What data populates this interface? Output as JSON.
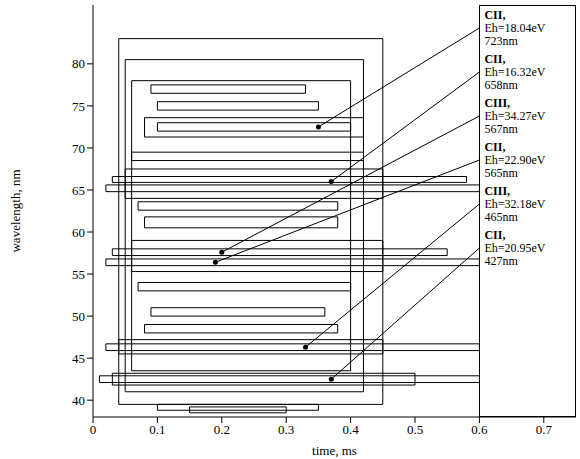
{
  "chart_data": {
    "type": "contour",
    "x_label": "time, ms",
    "y_label": "wavelength, nm",
    "xlim": [
      0,
      0.75
    ],
    "xticks": [
      0,
      0.1,
      0.2,
      0.3,
      0.4,
      0.5,
      0.6,
      0.7
    ],
    "ylim": [
      38,
      87
    ],
    "yticks": [
      40,
      45,
      50,
      55,
      60,
      65,
      70,
      75,
      80
    ],
    "color": "#000000",
    "contours": [
      {
        "t": [
          0.04,
          0.45
        ],
        "wavelength": [
          39.5,
          83
        ]
      },
      {
        "t": [
          0.05,
          0.42
        ],
        "wavelength": [
          41,
          80.5
        ]
      },
      {
        "t": [
          0.06,
          0.4
        ],
        "wavelength": [
          43.5,
          78
        ]
      },
      {
        "t": [
          0.01,
          0.6
        ],
        "wavelength": [
          42.1,
          42.9
        ]
      },
      {
        "t": [
          0.03,
          0.5
        ],
        "wavelength": [
          41.8,
          43.2
        ]
      },
      {
        "t": [
          0.02,
          0.6
        ],
        "wavelength": [
          45.9,
          46.7
        ]
      },
      {
        "t": [
          0.04,
          0.45
        ],
        "wavelength": [
          45.5,
          47.2
        ]
      },
      {
        "t": [
          0.08,
          0.38
        ],
        "wavelength": [
          48,
          49
        ]
      },
      {
        "t": [
          0.09,
          0.36
        ],
        "wavelength": [
          50,
          51
        ]
      },
      {
        "t": [
          0.07,
          0.4
        ],
        "wavelength": [
          53,
          54
        ]
      },
      {
        "t": [
          0.02,
          0.6
        ],
        "wavelength": [
          56,
          56.8
        ]
      },
      {
        "t": [
          0.03,
          0.55
        ],
        "wavelength": [
          57.2,
          58
        ]
      },
      {
        "t": [
          0.06,
          0.45
        ],
        "wavelength": [
          55.3,
          59
        ]
      },
      {
        "t": [
          0.08,
          0.38
        ],
        "wavelength": [
          60.5,
          61.8
        ]
      },
      {
        "t": [
          0.07,
          0.38
        ],
        "wavelength": [
          62.6,
          63.6
        ]
      },
      {
        "t": [
          0.02,
          0.6
        ],
        "wavelength": [
          64.8,
          65.6
        ]
      },
      {
        "t": [
          0.03,
          0.58
        ],
        "wavelength": [
          65.9,
          66.6
        ]
      },
      {
        "t": [
          0.05,
          0.45
        ],
        "wavelength": [
          64,
          67.5
        ]
      },
      {
        "t": [
          0.06,
          0.42
        ],
        "wavelength": [
          68.5,
          69.5
        ]
      },
      {
        "t": [
          0.1,
          0.4
        ],
        "wavelength": [
          72,
          73
        ]
      },
      {
        "t": [
          0.08,
          0.42
        ],
        "wavelength": [
          71.3,
          73.6
        ]
      },
      {
        "t": [
          0.1,
          0.35
        ],
        "wavelength": [
          74.5,
          75.5
        ]
      },
      {
        "t": [
          0.09,
          0.33
        ],
        "wavelength": [
          76.5,
          77.5
        ]
      },
      {
        "t": [
          0.1,
          0.35
        ],
        "wavelength": [
          38.8,
          39.5
        ]
      },
      {
        "t": [
          0.15,
          0.3
        ],
        "wavelength": [
          38.5,
          39.2
        ]
      }
    ],
    "annotations": [
      {
        "text": [
          "CII,",
          "Eh=18.04eV",
          "723nm"
        ],
        "x": 0.35,
        "y": 72.5
      },
      {
        "text": [
          "CII,",
          "Eh=16.32eV",
          "658nm"
        ],
        "x": 0.37,
        "y": 66
      },
      {
        "text": [
          "CIII,",
          "Eh=34.27eV",
          "567nm"
        ],
        "x": 0.2,
        "y": 57.6
      },
      {
        "text": [
          "CII,",
          "Eh=22.90eV",
          "565nm"
        ],
        "x": 0.19,
        "y": 56.4
      },
      {
        "text": [
          "CIII,",
          "Eh=32.18eV",
          "465nm"
        ],
        "x": 0.33,
        "y": 46.3
      },
      {
        "text": [
          "CII,",
          "Eh=20.95eV",
          "427nm"
        ],
        "x": 0.37,
        "y": 42.5
      }
    ]
  }
}
